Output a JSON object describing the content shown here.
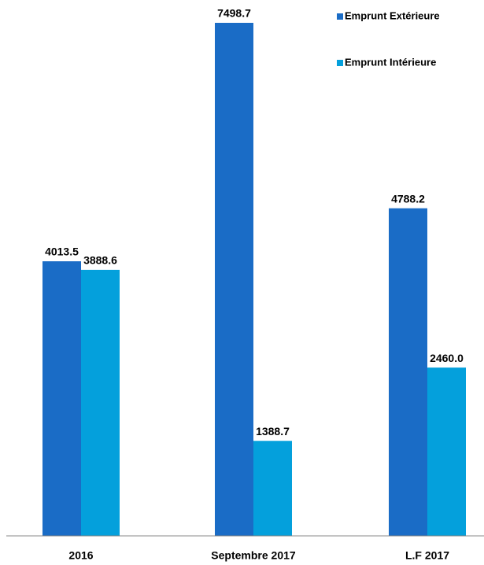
{
  "chart_data": {
    "type": "bar",
    "categories": [
      "2016",
      "Septembre 2017",
      "L.F 2017"
    ],
    "series": [
      {
        "name": "Emprunt Extérieure",
        "color": "#1a6cc6",
        "values": [
          4013.5,
          7498.7,
          4788.2
        ],
        "value_labels": [
          "4013.5",
          "7498.7",
          "4788.2"
        ]
      },
      {
        "name": "Emprunt Intérieure",
        "color": "#04a0dc",
        "values": [
          3888.6,
          1388.7,
          2460.0
        ],
        "value_labels": [
          "3888.6",
          "1388.7",
          "2460.0"
        ]
      }
    ],
    "legend": "top-right"
  }
}
